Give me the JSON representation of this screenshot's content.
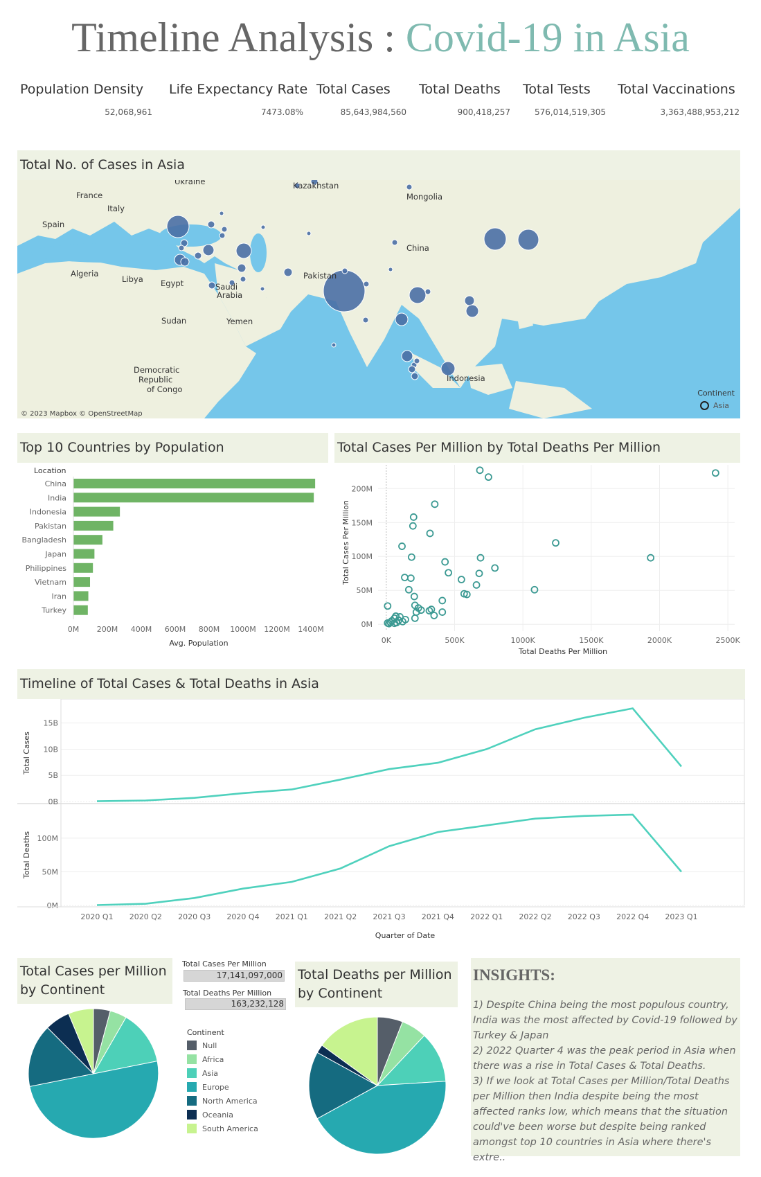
{
  "header": {
    "title_main": "Timeline Analysis : ",
    "title_accent": "Covid-19 in Asia"
  },
  "kpis": [
    {
      "label": "Population Density",
      "value": "52,068,961"
    },
    {
      "label": "Life Expectancy Rate",
      "value": "7473.08%"
    },
    {
      "label": "Total Cases",
      "value": "85,643,984,560"
    },
    {
      "label": "Total Deaths",
      "value": "900,418,257"
    },
    {
      "label": "Total Tests",
      "value": "576,014,519,305"
    },
    {
      "label": "Total Vaccinations",
      "value": "3,363,488,953,212"
    }
  ],
  "colors": {
    "panel_bg": "#eef2e4",
    "bar_green": "#6fb465",
    "scatter_teal": "#3c9a93",
    "line_teal": "#4fd1bd",
    "map_water": "#75c6ea",
    "map_land": "#eef0df",
    "bubble_blue": "#4a6fa5"
  },
  "map": {
    "title": "Total No. of Cases in Asia",
    "attribution": "© 2023 Mapbox © OpenStreetMap",
    "legend_title": "Continent",
    "legend_item": "Asia",
    "place_labels": [
      "Ukraine",
      "Kazakhstan",
      "France",
      "Italy",
      "Mongolia",
      "Spain",
      "China",
      "Algeria",
      "Libya",
      "Egypt",
      "Pakistan",
      "Saudi",
      "Arabia",
      "Sudan",
      "Yemen",
      "Democratic",
      "Republic",
      "of Congo",
      "Indonesia"
    ]
  },
  "population_chart": {
    "title": "Top 10 Countries by Population",
    "axis_header": "Location",
    "xlabel": "Avg. Population"
  },
  "scatter_chart": {
    "title": "Total Cases Per Million by Total Deaths Per Million",
    "xlabel": "Total Deaths Per Million",
    "ylabel": "Total Cases Per Million"
  },
  "timeline": {
    "title": "Timeline of Total Cases & Total Deaths in Asia",
    "xlabel": "Quarter of Date",
    "cases_label": "Total Cases",
    "deaths_label": "Total Deaths"
  },
  "pie_cases": {
    "title_line1": "Total Cases per Million",
    "title_line2": "by Continent"
  },
  "pie_deaths": {
    "title_line1": "Total Deaths per Million",
    "title_line2": "by Continent"
  },
  "kpi_boxes": [
    {
      "label": "Total Cases Per Million",
      "value": "17,141,097,000"
    },
    {
      "label": "Total Deaths Per Million",
      "value": "163,232,128"
    }
  ],
  "continent_legend": {
    "title": "Continent",
    "items": [
      {
        "name": "Null",
        "color": "#555e69"
      },
      {
        "name": "Africa",
        "color": "#95e2a3"
      },
      {
        "name": "Asia",
        "color": "#4dd0b8"
      },
      {
        "name": "Europe",
        "color": "#26a9b0"
      },
      {
        "name": "North America",
        "color": "#156b80"
      },
      {
        "name": "Oceania",
        "color": "#0c2e52"
      },
      {
        "name": "South America",
        "color": "#c7f38f"
      }
    ]
  },
  "insights": {
    "title": "INSIGHTS:",
    "lines": [
      "1) Despite China being the most populous country,",
      "India was the most affected by Covid-19 followed by",
      "Turkey & Japan",
      "2) 2022 Quarter 4 was the peak period in Asia when",
      "there was a rise in Total Cases & Total Deaths.",
      "3) If we look at Total Cases per Million/Total Deaths",
      "per Million then India despite being the most",
      "affected ranks low, which means that the situation",
      "could've been worse but despite being ranked",
      "amongst top 10 countries in Asia where there's extre.."
    ]
  },
  "chart_data": [
    {
      "type": "bar",
      "orientation": "horizontal",
      "title": "Top 10 Countries by Population",
      "xlabel": "Avg. Population",
      "categories": [
        "China",
        "India",
        "Indonesia",
        "Pakistan",
        "Bangladesh",
        "Japan",
        "Philippines",
        "Vietnam",
        "Iran",
        "Turkey"
      ],
      "values": [
        1425000000,
        1417000000,
        274000000,
        235000000,
        171000000,
        124000000,
        115000000,
        98000000,
        88000000,
        85000000
      ],
      "xlim": [
        0,
        1400000000
      ],
      "xticks": [
        "0M",
        "200M",
        "400M",
        "600M",
        "800M",
        "1000M",
        "1200M",
        "1400M"
      ]
    },
    {
      "type": "scatter",
      "title": "Total Cases Per Million by Total Deaths Per Million",
      "xlabel": "Total Deaths Per Million",
      "ylabel": "Total Cases Per Million",
      "xlim": [
        -60000,
        2550000
      ],
      "ylim": [
        -10000000,
        235000000
      ],
      "xticks": [
        "0K",
        "500K",
        "1000K",
        "1500K",
        "2000K",
        "2500K"
      ],
      "yticks": [
        "0M",
        "50M",
        "100M",
        "150M",
        "200M"
      ],
      "points": [
        [
          685000,
          227000000
        ],
        [
          748000,
          217000000
        ],
        [
          2410000,
          223000000
        ],
        [
          355000,
          177000000
        ],
        [
          200000,
          158000000
        ],
        [
          195000,
          145000000
        ],
        [
          320000,
          134000000
        ],
        [
          115000,
          115000000
        ],
        [
          1240000,
          120000000
        ],
        [
          185000,
          99000000
        ],
        [
          690000,
          98000000
        ],
        [
          1935000,
          98000000
        ],
        [
          430000,
          92000000
        ],
        [
          795000,
          83000000
        ],
        [
          455000,
          76000000
        ],
        [
          680000,
          75000000
        ],
        [
          135000,
          69000000
        ],
        [
          180000,
          68000000
        ],
        [
          550000,
          66000000
        ],
        [
          660000,
          58000000
        ],
        [
          165000,
          51000000
        ],
        [
          1085000,
          51000000
        ],
        [
          570000,
          45000000
        ],
        [
          590000,
          44000000
        ],
        [
          205000,
          41000000
        ],
        [
          410000,
          35000000
        ],
        [
          210000,
          28000000
        ],
        [
          10000,
          27000000
        ],
        [
          235000,
          24000000
        ],
        [
          330000,
          22000000
        ],
        [
          315000,
          20000000
        ],
        [
          255000,
          21000000
        ],
        [
          410000,
          18000000
        ],
        [
          220000,
          18000000
        ],
        [
          350000,
          13000000
        ],
        [
          70000,
          12000000
        ],
        [
          100000,
          11000000
        ],
        [
          60000,
          9000000
        ],
        [
          140000,
          7000000
        ],
        [
          210000,
          9000000
        ],
        [
          90000,
          6000000
        ],
        [
          40000,
          5000000
        ],
        [
          120000,
          4000000
        ],
        [
          30000,
          3000000
        ],
        [
          10000,
          2000000
        ],
        [
          60000,
          1500000
        ],
        [
          20000,
          1000000
        ],
        [
          75000,
          2500000
        ]
      ]
    },
    {
      "type": "line",
      "title": "Timeline of Total Cases & Total Deaths in Asia",
      "xlabel": "Quarter of Date",
      "x": [
        "2020 Q1",
        "2020 Q2",
        "2020 Q3",
        "2020 Q4",
        "2021 Q1",
        "2021 Q2",
        "2021 Q3",
        "2021 Q4",
        "2022 Q1",
        "2022 Q2",
        "2022 Q3",
        "2022 Q4",
        "2023 Q1"
      ],
      "series": [
        {
          "name": "Total Cases",
          "values": [
            50000000.0,
            200000000.0,
            700000000.0,
            1600000000.0,
            2300000000.0,
            4200000000.0,
            6200000000.0,
            7400000000.0,
            10000000000.0,
            13800000000.0,
            16000000000.0,
            17800000000.0,
            6700000000.0
          ],
          "ylim": [
            0,
            18000000000
          ],
          "yticks": [
            "0B",
            "5B",
            "10B",
            "15B"
          ]
        },
        {
          "name": "Total Deaths",
          "values": [
            500000.0,
            2500000.0,
            11000000.0,
            25000000.0,
            35000000.0,
            55000000.0,
            88000000.0,
            109000000.0,
            119000000.0,
            129000000.0,
            133000000.0,
            135000000.0,
            50000000.0
          ],
          "ylim": [
            0,
            140000000
          ],
          "yticks": [
            "0M",
            "50M",
            "100M"
          ]
        }
      ]
    },
    {
      "type": "pie",
      "title": "Total Cases per Million by Continent",
      "labels": [
        "Null",
        "Africa",
        "Asia",
        "Europe",
        "North America",
        "Oceania",
        "South America"
      ],
      "values": [
        4,
        4,
        13,
        48,
        15,
        6,
        6
      ]
    },
    {
      "type": "pie",
      "title": "Total Deaths per Million by Continent",
      "labels": [
        "Null",
        "Africa",
        "Asia",
        "Europe",
        "North America",
        "Oceania",
        "South America"
      ],
      "values": [
        6,
        6,
        12,
        43,
        16,
        2,
        15
      ]
    }
  ]
}
